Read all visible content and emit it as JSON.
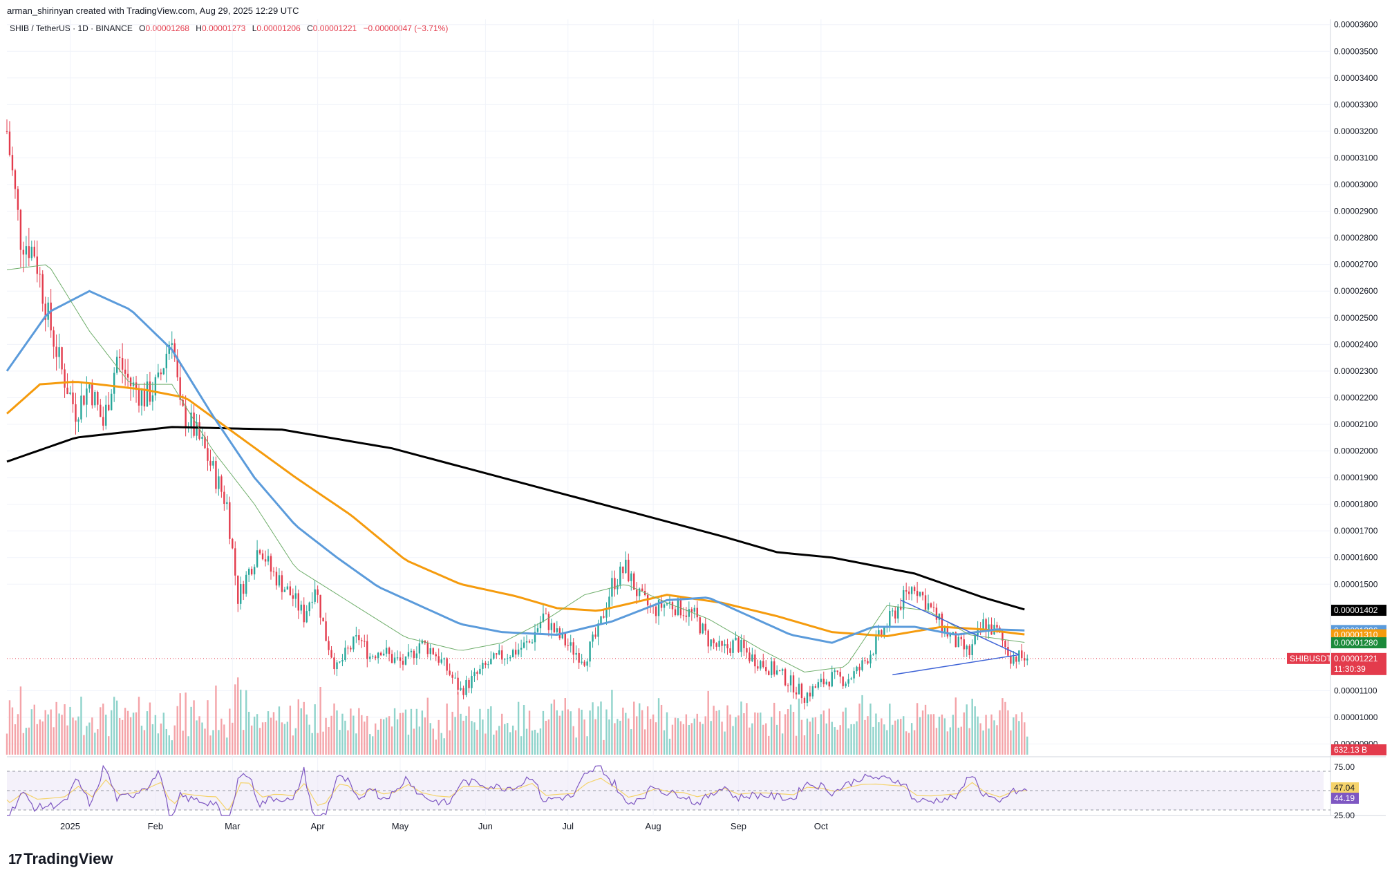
{
  "header": {
    "creator": "arman_shirinyan created with TradingView.com, Aug 29, 2025 12:29 UTC"
  },
  "legend": {
    "symbol": "SHIB / TetherUS · 1D · BINANCE",
    "o_label": "O",
    "o": "0.00001268",
    "h_label": "H",
    "h": "0.00001273",
    "l_label": "L",
    "l": "0.00001206",
    "c_label": "C",
    "c": "0.00001221",
    "change": "−0.00000047 (−3.71%)"
  },
  "brand": {
    "name": "TradingView",
    "mark": "17"
  },
  "colors": {
    "up": "#26a69a",
    "down": "#e33b4c",
    "vol_up": "#8fd3cb",
    "vol_down": "#f4a3a8",
    "ma200": "#000000",
    "ma100": "#f59b0d",
    "ma50": "#5b9bdb",
    "ma20": "#6fae6b",
    "rsi": "#7e57c2",
    "rsi_ma": "#f5d36b",
    "trendline": "#3d62d6"
  },
  "chart_data": {
    "type": "candlestick",
    "price_axis": {
      "ticks": [
        "0.00003600",
        "0.00003500",
        "0.00003400",
        "0.00003300",
        "0.00003200",
        "0.00003100",
        "0.00003000",
        "0.00002900",
        "0.00002800",
        "0.00002700",
        "0.00002600",
        "0.00002500",
        "0.00002400",
        "0.00002300",
        "0.00002200",
        "0.00002100",
        "0.00002000",
        "0.00001900",
        "0.00001800",
        "0.00001700",
        "0.00001600",
        "0.00001500",
        "0.00001100",
        "0.00001000",
        "0.00000900"
      ],
      "tick_values": [
        3600,
        3500,
        3400,
        3300,
        3200,
        3100,
        3000,
        2900,
        2800,
        2700,
        2600,
        2500,
        2400,
        2300,
        2200,
        2100,
        2000,
        1900,
        1800,
        1700,
        1600,
        1500,
        1100,
        1000,
        900
      ],
      "min": 860,
      "max": 3620,
      "unit_scale": 1e-08
    },
    "time_axis": {
      "labels": [
        "2025",
        "Feb",
        "Mar",
        "Apr",
        "May",
        "Jun",
        "Jul",
        "Aug",
        "Sep",
        "Oct"
      ]
    },
    "price_tags": [
      {
        "label": "0.00001402",
        "value": 1402,
        "color": "#000000"
      },
      {
        "label": "0.00001326",
        "value": 1326,
        "color": "#5b9bdb"
      },
      {
        "label": "0.00001310",
        "value": 1310,
        "color": "#f59b0d"
      },
      {
        "label": "0.00001280",
        "value": 1280,
        "color": "#1b8a3a"
      }
    ],
    "last_price": {
      "symbol": "SHIBUSDT",
      "label": "0.00001221",
      "countdown": "11:30:39",
      "value": 1221
    },
    "volume_tag": "632.13 B",
    "moving_averages": [
      {
        "key": "ma200",
        "points": [
          [
            0,
            1960
          ],
          [
            25,
            2050
          ],
          [
            60,
            2090
          ],
          [
            100,
            2080
          ],
          [
            140,
            2010
          ],
          [
            180,
            1900
          ],
          [
            220,
            1790
          ],
          [
            260,
            1680
          ],
          [
            280,
            1620
          ],
          [
            300,
            1600
          ],
          [
            330,
            1540
          ],
          [
            355,
            1450
          ],
          [
            371,
            1402
          ]
        ]
      },
      {
        "key": "ma100",
        "points": [
          [
            0,
            2140
          ],
          [
            12,
            2250
          ],
          [
            25,
            2260
          ],
          [
            50,
            2230
          ],
          [
            65,
            2200
          ],
          [
            85,
            2050
          ],
          [
            105,
            1900
          ],
          [
            125,
            1760
          ],
          [
            145,
            1590
          ],
          [
            165,
            1500
          ],
          [
            185,
            1455
          ],
          [
            200,
            1410
          ],
          [
            215,
            1400
          ],
          [
            240,
            1460
          ],
          [
            260,
            1430
          ],
          [
            280,
            1380
          ],
          [
            300,
            1320
          ],
          [
            320,
            1305
          ],
          [
            340,
            1340
          ],
          [
            355,
            1330
          ],
          [
            371,
            1310
          ]
        ]
      },
      {
        "key": "ma50",
        "points": [
          [
            0,
            2300
          ],
          [
            15,
            2520
          ],
          [
            30,
            2600
          ],
          [
            45,
            2530
          ],
          [
            60,
            2380
          ],
          [
            75,
            2130
          ],
          [
            90,
            1900
          ],
          [
            105,
            1720
          ],
          [
            120,
            1600
          ],
          [
            135,
            1490
          ],
          [
            150,
            1420
          ],
          [
            165,
            1350
          ],
          [
            180,
            1320
          ],
          [
            200,
            1310
          ],
          [
            220,
            1360
          ],
          [
            240,
            1440
          ],
          [
            255,
            1450
          ],
          [
            270,
            1380
          ],
          [
            285,
            1310
          ],
          [
            300,
            1280
          ],
          [
            315,
            1340
          ],
          [
            330,
            1340
          ],
          [
            345,
            1310
          ],
          [
            360,
            1330
          ],
          [
            371,
            1326
          ]
        ]
      },
      {
        "key": "ma20",
        "points": [
          [
            0,
            2680
          ],
          [
            15,
            2700
          ],
          [
            30,
            2450
          ],
          [
            45,
            2250
          ],
          [
            60,
            2250
          ],
          [
            75,
            2000
          ],
          [
            90,
            1800
          ],
          [
            105,
            1560
          ],
          [
            125,
            1430
          ],
          [
            145,
            1300
          ],
          [
            165,
            1250
          ],
          [
            180,
            1280
          ],
          [
            195,
            1360
          ],
          [
            210,
            1460
          ],
          [
            225,
            1500
          ],
          [
            240,
            1430
          ],
          [
            255,
            1370
          ],
          [
            275,
            1250
          ],
          [
            290,
            1170
          ],
          [
            305,
            1190
          ],
          [
            320,
            1420
          ],
          [
            335,
            1400
          ],
          [
            350,
            1310
          ],
          [
            371,
            1280
          ]
        ]
      }
    ],
    "price_path": [
      [
        0,
        3200
      ],
      [
        5,
        2800
      ],
      [
        10,
        2750
      ],
      [
        15,
        2500
      ],
      [
        20,
        2300
      ],
      [
        25,
        2150
      ],
      [
        30,
        2250
      ],
      [
        35,
        2100
      ],
      [
        40,
        2350
      ],
      [
        45,
        2250
      ],
      [
        50,
        2200
      ],
      [
        55,
        2250
      ],
      [
        60,
        2450
      ],
      [
        63,
        2150
      ],
      [
        67,
        2100
      ],
      [
        72,
        2000
      ],
      [
        76,
        1900
      ],
      [
        80,
        1800
      ],
      [
        84,
        1450
      ],
      [
        88,
        1550
      ],
      [
        92,
        1650
      ],
      [
        96,
        1550
      ],
      [
        100,
        1500
      ],
      [
        104,
        1450
      ],
      [
        108,
        1380
      ],
      [
        112,
        1500
      ],
      [
        116,
        1300
      ],
      [
        120,
        1180
      ],
      [
        124,
        1250
      ],
      [
        128,
        1300
      ],
      [
        132,
        1230
      ],
      [
        136,
        1260
      ],
      [
        140,
        1220
      ],
      [
        145,
        1200
      ],
      [
        150,
        1280
      ],
      [
        155,
        1250
      ],
      [
        160,
        1180
      ],
      [
        165,
        1100
      ],
      [
        170,
        1150
      ],
      [
        175,
        1200
      ],
      [
        180,
        1230
      ],
      [
        185,
        1250
      ],
      [
        190,
        1280
      ],
      [
        195,
        1380
      ],
      [
        200,
        1310
      ],
      [
        205,
        1260
      ],
      [
        210,
        1220
      ],
      [
        215,
        1320
      ],
      [
        220,
        1500
      ],
      [
        225,
        1560
      ],
      [
        230,
        1450
      ],
      [
        235,
        1400
      ],
      [
        240,
        1430
      ],
      [
        245,
        1410
      ],
      [
        250,
        1380
      ],
      [
        255,
        1290
      ],
      [
        260,
        1250
      ],
      [
        265,
        1280
      ],
      [
        270,
        1230
      ],
      [
        275,
        1200
      ],
      [
        280,
        1170
      ],
      [
        285,
        1130
      ],
      [
        290,
        1080
      ],
      [
        295,
        1120
      ],
      [
        300,
        1150
      ],
      [
        305,
        1140
      ],
      [
        310,
        1180
      ],
      [
        315,
        1260
      ],
      [
        320,
        1350
      ],
      [
        325,
        1430
      ],
      [
        330,
        1500
      ],
      [
        335,
        1420
      ],
      [
        340,
        1340
      ],
      [
        345,
        1280
      ],
      [
        350,
        1240
      ],
      [
        355,
        1350
      ],
      [
        360,
        1320
      ],
      [
        365,
        1230
      ],
      [
        371,
        1221
      ]
    ],
    "triangle": {
      "upper": [
        [
          325,
          1440
        ],
        [
          352,
          1310
        ]
      ],
      "lower": [
        [
          322,
          1160
        ],
        [
          366,
          1235
        ]
      ],
      "apex": [
        368,
        1235
      ]
    },
    "rsi": {
      "levels": [
        "75.00",
        "25.00"
      ],
      "tags": [
        {
          "label": "47.04",
          "color": "#f5d36b"
        },
        {
          "label": "44.19",
          "color": "#7e57c2"
        }
      ]
    }
  }
}
